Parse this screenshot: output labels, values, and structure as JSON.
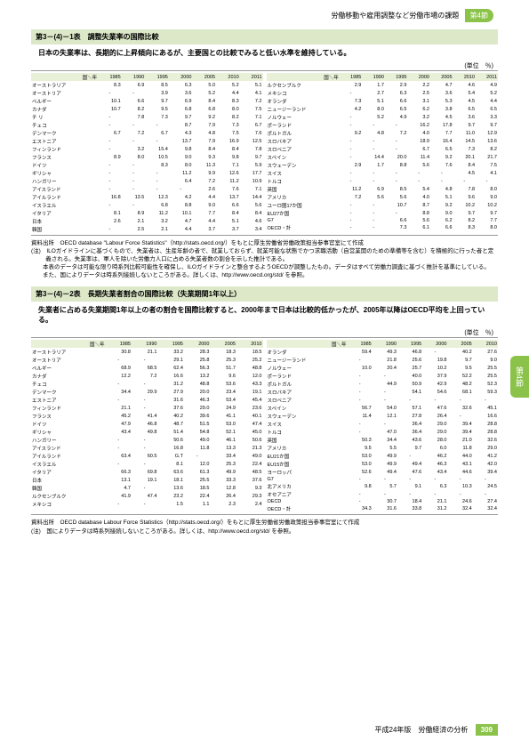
{
  "header": {
    "breadcrumb": "労働移動や雇用調整など労働市場の課題",
    "section_label": "第4節"
  },
  "side_tab": "第4節",
  "footer": {
    "text": "平成24年版　労働経済の分析",
    "page": "309"
  },
  "table1": {
    "title": "第3－(4)－1表　調整失業率の国際比較",
    "subtitle": "日本の失業率は、長期的に上昇傾向にあるが、主要国との比較でみると低い水準を維持している。",
    "unit": "(単位　％)",
    "years": [
      "1985",
      "1990",
      "1995",
      "2000",
      "2005",
      "2010",
      "2011"
    ],
    "left": [
      {
        "c": "オーストラリア",
        "v": [
          "8.3",
          "6.9",
          "8.5",
          "6.3",
          "5.0",
          "5.2",
          "5.1"
        ]
      },
      {
        "c": "オーストリア",
        "v": [
          "-",
          "-",
          "3.9",
          "3.6",
          "5.2",
          "4.4",
          "4.1"
        ]
      },
      {
        "c": "ベルギー",
        "v": [
          "10.1",
          "6.6",
          "9.7",
          "6.9",
          "8.4",
          "8.3",
          "7.2"
        ]
      },
      {
        "c": "カナダ",
        "v": [
          "10.7",
          "8.2",
          "9.5",
          "6.8",
          "6.8",
          "8.0",
          "7.5"
        ]
      },
      {
        "c": "チ リ",
        "v": [
          "-",
          "7.8",
          "7.3",
          "9.7",
          "9.2",
          "8.2",
          "7.1"
        ]
      },
      {
        "c": "チェコ",
        "v": [
          "-",
          "-",
          "-",
          "8.7",
          "7.9",
          "7.3",
          "6.7"
        ]
      },
      {
        "c": "デンマーク",
        "v": [
          "6.7",
          "7.2",
          "6.7",
          "4.3",
          "4.8",
          "7.5",
          "7.6"
        ]
      },
      {
        "c": "エストニア",
        "v": [
          "-",
          "-",
          "-",
          "13.7",
          "7.9",
          "16.9",
          "12.5"
        ]
      },
      {
        "c": "フィンランド",
        "v": [
          "-",
          "3.2",
          "15.4",
          "9.8",
          "8.4",
          "8.4",
          "7.8"
        ]
      },
      {
        "c": "フランス",
        "v": [
          "8.9",
          "8.0",
          "10.5",
          "9.0",
          "9.3",
          "9.8",
          "9.7"
        ]
      },
      {
        "c": "ドイツ",
        "v": [
          "-",
          "-",
          "8.3",
          "8.0",
          "11.3",
          "7.1",
          "5.9"
        ]
      },
      {
        "c": "ギリシャ",
        "v": [
          "-",
          "-",
          "-",
          "11.2",
          "9.9",
          "12.6",
          "17.7"
        ]
      },
      {
        "c": "ハンガリー",
        "v": [
          "-",
          "-",
          "-",
          "6.4",
          "7.2",
          "11.2",
          "10.9"
        ]
      },
      {
        "c": "アイスランド",
        "v": [
          "-",
          "-",
          "-",
          "-",
          "2.6",
          "7.6",
          "7.1"
        ]
      },
      {
        "c": "アイルランド",
        "v": [
          "16.8",
          "13.5",
          "12.3",
          "4.2",
          "4.4",
          "13.7",
          "14.4"
        ]
      },
      {
        "c": "イスラエル",
        "v": [
          "-",
          "-",
          "6.8",
          "8.8",
          "9.0",
          "6.6",
          "5.6"
        ]
      },
      {
        "c": "イタリア",
        "v": [
          "8.1",
          "8.9",
          "11.2",
          "10.1",
          "7.7",
          "8.4",
          "8.4"
        ]
      },
      {
        "c": "日本",
        "v": [
          "2.6",
          "2.1",
          "3.2",
          "4.7",
          "4.4",
          "5.1",
          "4.6"
        ]
      },
      {
        "c": "韓国",
        "v": [
          "-",
          "2.5",
          "2.1",
          "4.4",
          "3.7",
          "3.7",
          "3.4"
        ]
      }
    ],
    "right": [
      {
        "c": "ルクセンブルク",
        "v": [
          "2.9",
          "1.7",
          "2.9",
          "2.2",
          "4.7",
          "4.6",
          "4.9"
        ]
      },
      {
        "c": "メキシコ",
        "v": [
          "-",
          "2.7",
          "6.3",
          "2.5",
          "3.6",
          "5.4",
          "5.2"
        ]
      },
      {
        "c": "オランダ",
        "v": [
          "7.3",
          "5.1",
          "6.6",
          "3.1",
          "5.3",
          "4.5",
          "4.4"
        ]
      },
      {
        "c": "ニュージーランド",
        "v": [
          "4.2",
          "8.0",
          "6.5",
          "6.2",
          "3.8",
          "6.5",
          "6.5"
        ]
      },
      {
        "c": "ノルウェー",
        "v": [
          "-",
          "5.2",
          "4.9",
          "3.2",
          "4.5",
          "3.6",
          "3.3"
        ]
      },
      {
        "c": "ポーランド",
        "v": [
          "-",
          "-",
          "-",
          "16.2",
          "17.8",
          "9.7",
          "9.7"
        ]
      },
      {
        "c": "ポルトガル",
        "v": [
          "9.2",
          "4.8",
          "7.2",
          "4.0",
          "7.7",
          "11.0",
          "12.9"
        ]
      },
      {
        "c": "スロバキア",
        "v": [
          "-",
          "-",
          "-",
          "18.9",
          "16.4",
          "14.5",
          "13.6"
        ]
      },
      {
        "c": "スロベニア",
        "v": [
          "-",
          "-",
          "-",
          "6.7",
          "6.5",
          "7.3",
          "8.2"
        ]
      },
      {
        "c": "スペイン",
        "v": [
          "-",
          "14.4",
          "20.0",
          "11.4",
          "9.2",
          "20.1",
          "21.7"
        ]
      },
      {
        "c": "スウェーデン",
        "v": [
          "2.9",
          "1.7",
          "8.8",
          "5.6",
          "7.6",
          "8.4",
          "7.5"
        ]
      },
      {
        "c": "スイス",
        "v": [
          "-",
          "-",
          "-",
          "-",
          "-",
          "4.5",
          "4.1"
        ]
      },
      {
        "c": "トルコ",
        "v": [
          "-",
          "-",
          "-",
          "-",
          "-",
          "-",
          "-"
        ]
      },
      {
        "c": "英国",
        "v": [
          "11.2",
          "6.9",
          "8.5",
          "5.4",
          "4.8",
          "7.8",
          "8.0"
        ]
      },
      {
        "c": "アメリカ",
        "v": [
          "7.2",
          "5.6",
          "5.6",
          "4.0",
          "5.1",
          "9.6",
          "9.0"
        ]
      },
      {
        "c": "ユーロ圏17か国",
        "v": [
          "-",
          "-",
          "10.7",
          "8.7",
          "9.2",
          "10.2",
          "10.2"
        ]
      },
      {
        "c": "EU27か国",
        "v": [
          "-",
          "-",
          "-",
          "8.8",
          "9.0",
          "9.7",
          "9.7"
        ]
      },
      {
        "c": "G7",
        "v": [
          "-",
          "-",
          "6.6",
          "5.6",
          "6.2",
          "8.2",
          "7.7"
        ]
      },
      {
        "c": "OECD・計",
        "v": [
          "-",
          "-",
          "7.3",
          "6.1",
          "6.6",
          "8.3",
          "8.0"
        ]
      }
    ],
    "source": "資料出所　OECD database \"Labour Force Statistics\"（http://stats.oecd.org/）をもとに厚生労働省労働政策担当参事官室にて作成",
    "note1": "(注)　ILOガイドラインに基づくもので、失業者は、生産年齢の者で、就業しておらず、就業可能な状態でかつ求職活動（自営業開のための準備等を含む）を積極的に行った者と定義される。失業率は、軍人を除いた労働力人口に占める失業者数の割合を示した推計である。",
    "note2": "　　本表のデータは可能な限り時系列比較可能性を確保し、ILOガイドラインと整合するようOECDが調整したもの。データはすべて労働力調査に基づく推計を基準にしている。",
    "note3": "　　また、国によりデータは時系列接続しないところがある。詳しくは、http://www.oecd.org/std/ を参照。"
  },
  "table2": {
    "title": "第3－(4)－2表　長期失業者割合の国際比較（失業期間1年以上）",
    "subtitle": "失業者に占める失業期間1年以上の者の割合を国際比較すると、2000年まで日本は比較的低かったが、2005年以降はOECD平均を上回っている。",
    "unit": "(単位　％)",
    "years": [
      "1985",
      "1990",
      "1995",
      "2000",
      "2005",
      "2010"
    ],
    "left": [
      {
        "c": "オーストラリア",
        "v": [
          "30.8",
          "21.1",
          "33.2",
          "28.3",
          "18.3",
          "18.5"
        ]
      },
      {
        "c": "オーストリア",
        "v": [
          "-",
          "-",
          "29.1",
          "25.8",
          "25.3",
          "25.2"
        ]
      },
      {
        "c": "ベルギー",
        "v": [
          "68.9",
          "68.5",
          "62.4",
          "56.3",
          "51.7",
          "48.8"
        ]
      },
      {
        "c": "カナダ",
        "v": [
          "12.2",
          "7.2",
          "16.6",
          "13.2",
          "9.6",
          "12.0"
        ]
      },
      {
        "c": "チェコ",
        "v": [
          "-",
          "-",
          "31.2",
          "48.8",
          "53.6",
          "43.3"
        ]
      },
      {
        "c": "デンマーク",
        "v": [
          "34.4",
          "29.9",
          "27.9",
          "20.0",
          "23.4",
          "19.1"
        ]
      },
      {
        "c": "エストニア",
        "v": [
          "-",
          "-",
          "31.6",
          "46.3",
          "53.4",
          "45.4"
        ]
      },
      {
        "c": "フィンランド",
        "v": [
          "21.1",
          "-",
          "37.6",
          "29.0",
          "24.9",
          "23.6"
        ]
      },
      {
        "c": "フランス",
        "v": [
          "45.2",
          "41.4",
          "40.2",
          "39.6",
          "41.1",
          "40.1"
        ]
      },
      {
        "c": "ドイツ",
        "v": [
          "47.9",
          "46.8",
          "48.7",
          "51.5",
          "53.0",
          "47.4"
        ]
      },
      {
        "c": "ギリシャ",
        "v": [
          "43.4",
          "49.8",
          "51.4",
          "54.8",
          "52.1",
          "45.0"
        ]
      },
      {
        "c": "ハンガリー",
        "v": [
          "-",
          "-",
          "50.6",
          "49.0",
          "46.1",
          "50.6"
        ]
      },
      {
        "c": "アイスランド",
        "v": [
          "-",
          "-",
          "16.8",
          "11.8",
          "13.3",
          "21.3"
        ]
      },
      {
        "c": "アイルランド",
        "v": [
          "63.4",
          "60.5",
          "G.T",
          "-",
          "33.4",
          "49.0"
        ]
      },
      {
        "c": "イスラエル",
        "v": [
          "-",
          "-",
          "8.1",
          "12.0",
          "25.3",
          "22.4"
        ]
      },
      {
        "c": "イタリア",
        "v": [
          "66.3",
          "69.8",
          "63.6",
          "61.3",
          "49.9",
          "48.5"
        ]
      },
      {
        "c": "日本",
        "v": [
          "13.1",
          "19.1",
          "18.1",
          "25.5",
          "33.3",
          "37.6"
        ]
      },
      {
        "c": "韓国",
        "v": [
          "4.7",
          "-",
          "13.6",
          "18.5",
          "12.8",
          "9.3"
        ]
      },
      {
        "c": "ルクセンブルク",
        "v": [
          "41.9",
          "47.4",
          "23.2",
          "22.4",
          "26.4",
          "29.3"
        ]
      },
      {
        "c": "メキシコ",
        "v": [
          "-",
          "-",
          "1.5",
          "1.1",
          "2.3",
          "2.4"
        ]
      }
    ],
    "right": [
      {
        "c": "オランダ",
        "v": [
          "59.4",
          "49.3",
          "46.8",
          "-",
          "40.2",
          "27.6"
        ]
      },
      {
        "c": "ニュージーランド",
        "v": [
          "-",
          "21.8",
          "25.6",
          "19.8",
          "9.7",
          "9.0"
        ]
      },
      {
        "c": "ノルウェー",
        "v": [
          "10.0",
          "20.4",
          "25.7",
          "10.2",
          "9.5",
          "25.5"
        ]
      },
      {
        "c": "ポーランド",
        "v": [
          "-",
          "-",
          "40.0",
          "37.9",
          "52.2",
          "25.5"
        ]
      },
      {
        "c": "ポルトガル",
        "v": [
          "-",
          "44.9",
          "50.9",
          "42.9",
          "48.2",
          "52.3"
        ]
      },
      {
        "c": "スロバキア",
        "v": [
          "-",
          "-",
          "54.1",
          "54.6",
          "68.1",
          "59.3"
        ]
      },
      {
        "c": "スロベニア",
        "v": [
          "-",
          "-",
          "-",
          "-",
          "-",
          "-"
        ]
      },
      {
        "c": "スペイン",
        "v": [
          "56.7",
          "54.0",
          "57.1",
          "47.6",
          "32.6",
          "45.1"
        ]
      },
      {
        "c": "スウェーデン",
        "v": [
          "11.4",
          "12.1",
          "27.8",
          "26.4",
          "-",
          "16.6"
        ]
      },
      {
        "c": "スイス",
        "v": [
          "-",
          "-",
          "36.4",
          "29.0",
          "39.4",
          "28.8"
        ]
      },
      {
        "c": "トルコ",
        "v": [
          "-",
          "47.0",
          "36.4",
          "29.0",
          "39.4",
          "28.8"
        ]
      },
      {
        "c": "英国",
        "v": [
          "50.3",
          "34.4",
          "43.6",
          "28.0",
          "21.0",
          "32.6"
        ]
      },
      {
        "c": "アメリカ",
        "v": [
          "9.5",
          "5.5",
          "9.7",
          "6.0",
          "11.8",
          "29.0"
        ]
      },
      {
        "c": "EU21か国",
        "v": [
          "53.0",
          "49.9",
          "-",
          "46.2",
          "44.0",
          "41.2"
        ]
      },
      {
        "c": "EU15か国",
        "v": [
          "53.0",
          "49.9",
          "49.4",
          "46.3",
          "43.1",
          "42.0"
        ]
      },
      {
        "c": "ヨーロッパ",
        "v": [
          "52.6",
          "49.4",
          "47.6",
          "43.4",
          "44.6",
          "39.4"
        ]
      },
      {
        "c": "G7",
        "v": [
          "-",
          "-",
          "-",
          "-",
          "-",
          "-"
        ]
      },
      {
        "c": "北アメリカ",
        "v": [
          "9.8",
          "5.7",
          "9.1",
          "6.3",
          "10.3",
          "24.5"
        ]
      },
      {
        "c": "オセアニア",
        "v": [
          "-",
          "-",
          "-",
          "-",
          "-",
          "-"
        ]
      },
      {
        "c": "OECD",
        "v": [
          "-",
          "30.7",
          "18.4",
          "21.1",
          "24.6",
          "27.4"
        ]
      },
      {
        "c": "OECD・計",
        "v": [
          "34.3",
          "31.6",
          "33.8",
          "31.2",
          "32.4",
          "32.4"
        ]
      }
    ],
    "source": "資料出所　OECD database Labour Force Statistics（http://stats.oecd.org/）をもとに厚生労働省労働政策担当参事官室にて作成",
    "note1": "(注)　国によりデータは時系列接続しないところがある。詳しくは、http://www.oecd.org/std/ を参照。"
  }
}
